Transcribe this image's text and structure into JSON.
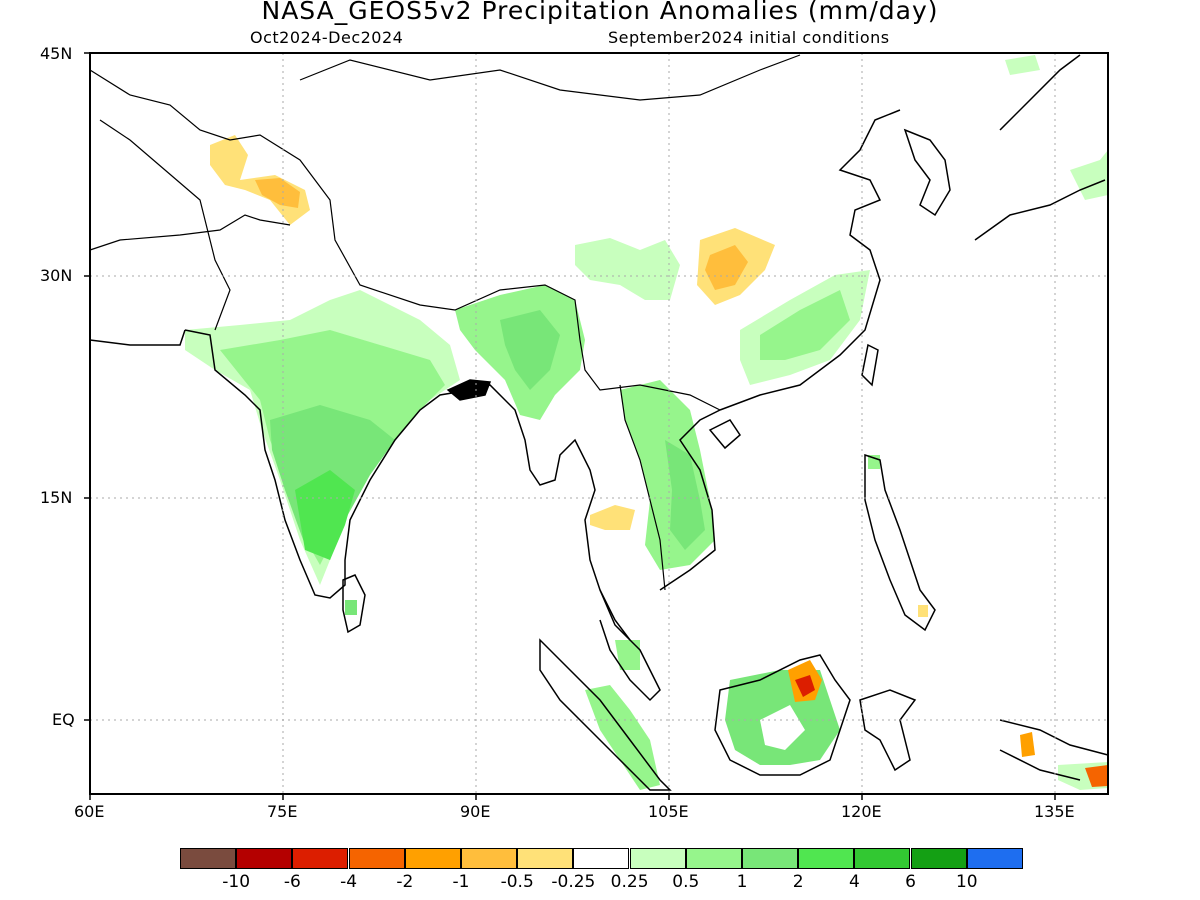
{
  "title": "NASA_GEOS5v2 Precipitation Anomalies (mm/day)",
  "subtitle_left": "Oct2024-Dec2024",
  "subtitle_right": "September2024 initial conditions",
  "lon_ticks": [
    "60E",
    "75E",
    "90E",
    "105E",
    "120E",
    "135E"
  ],
  "lat_ticks": [
    "45N",
    "30N",
    "15N",
    "EQ"
  ],
  "legend": {
    "colors": [
      "#7a4b3e",
      "#b40000",
      "#dc1e00",
      "#f56400",
      "#ffa000",
      "#ffbe3c",
      "#ffe178",
      "#ffffff",
      "#c8ffbe",
      "#96f58c",
      "#78e678",
      "#50e650",
      "#32c832",
      "#14a014",
      "#1e6ef0"
    ],
    "labels": [
      "-10",
      "-6",
      "-4",
      "-2",
      "-1",
      "-0.5",
      "-0.25",
      "0.25",
      "0.5",
      "1",
      "2",
      "4",
      "6",
      "10"
    ]
  }
}
